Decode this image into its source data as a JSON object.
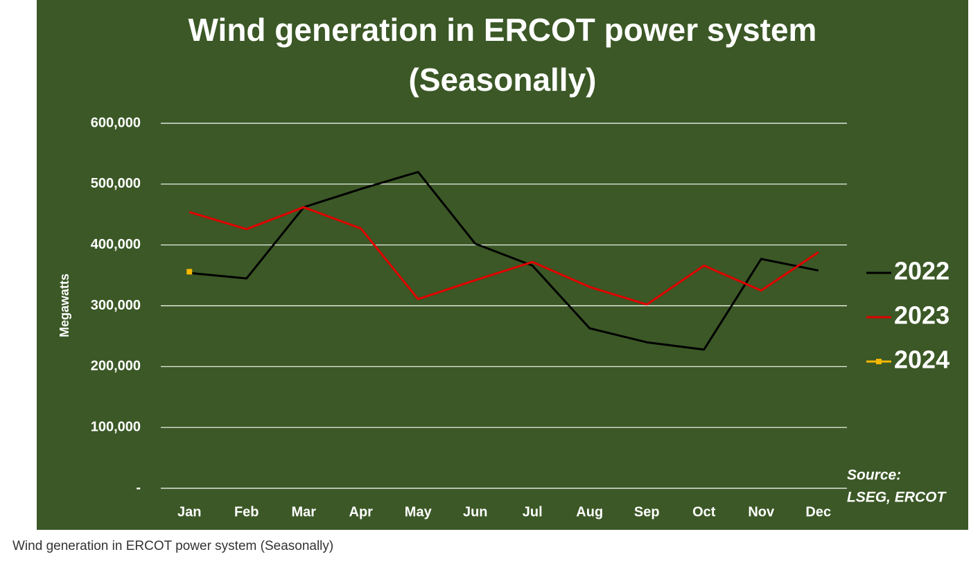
{
  "chart_data": {
    "type": "line",
    "title": "Wind generation in ERCOT power system",
    "subtitle": "(Seasonally)",
    "ylabel": "Megawatts",
    "categories": [
      "Jan",
      "Feb",
      "Mar",
      "Apr",
      "May",
      "Jun",
      "Jul",
      "Aug",
      "Sep",
      "Oct",
      "Nov",
      "Dec"
    ],
    "series": [
      {
        "name": "2022",
        "color": "#000000",
        "values": [
          354000,
          345000,
          462000,
          492000,
          520000,
          402000,
          366000,
          263000,
          240000,
          228000,
          377000,
          358000
        ]
      },
      {
        "name": "2023",
        "color": "#e00000",
        "values": [
          454000,
          426000,
          462000,
          427000,
          311000,
          342000,
          372000,
          331000,
          302000,
          366000,
          325000,
          388000
        ]
      },
      {
        "name": "2024",
        "color": "#f5b800",
        "marker": "square",
        "values": [
          356000,
          null,
          null,
          null,
          null,
          null,
          null,
          null,
          null,
          null,
          null,
          null
        ]
      }
    ],
    "ylim": [
      0,
      600000
    ],
    "yticks": [
      {
        "value": 0,
        "label": "-"
      },
      {
        "value": 100000,
        "label": "100,000"
      },
      {
        "value": 200000,
        "label": "200,000"
      },
      {
        "value": 300000,
        "label": "300,000"
      },
      {
        "value": 400000,
        "label": "400,000"
      },
      {
        "value": 500000,
        "label": "500,000"
      },
      {
        "value": 600000,
        "label": "600,000"
      }
    ],
    "grid": true,
    "legend": "right",
    "background": "#3b5826",
    "source": [
      "Source:",
      "LSEG, ERCOT"
    ],
    "caption": "Wind generation in ERCOT power system (Seasonally)"
  }
}
